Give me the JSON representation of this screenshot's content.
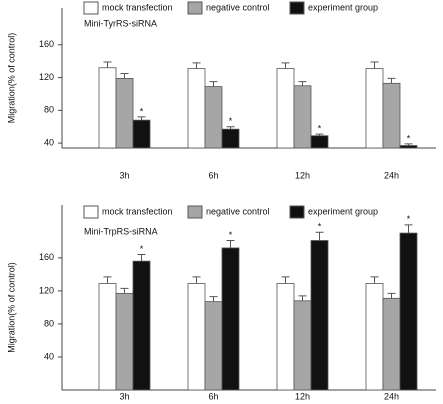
{
  "chart_data": [
    {
      "type": "bar",
      "y_label": "Migration(% of control)",
      "annotation": "Mini-TyrRS-siRNA",
      "categories": [
        "3h",
        "6h",
        "12h",
        "24h"
      ],
      "series": [
        {
          "name": "mock transfection",
          "color": "#ffffff",
          "values": [
            132,
            131,
            131,
            131
          ],
          "errors": [
            7,
            7,
            7,
            8
          ]
        },
        {
          "name": "negative control",
          "color": "#a6a6a6",
          "values": [
            119,
            109,
            110,
            113
          ],
          "errors": [
            6,
            6,
            5,
            6
          ]
        },
        {
          "name": "experiment group",
          "color": "#111111",
          "values": [
            68,
            57,
            49,
            37
          ],
          "errors": [
            4,
            3,
            2,
            2
          ],
          "significance": [
            "*",
            "*",
            "*",
            "*"
          ]
        }
      ],
      "ylim": [
        34,
        205
      ],
      "yticks": [
        40,
        80,
        120,
        160
      ]
    },
    {
      "type": "bar",
      "y_label": "Migration(% of control)",
      "annotation": "Mini-TrpRS-siRNA",
      "categories": [
        "3h",
        "6h",
        "12h",
        "24h"
      ],
      "series": [
        {
          "name": "mock transfection",
          "color": "#ffffff",
          "values": [
            129,
            129,
            129,
            129
          ],
          "errors": [
            8,
            8,
            8,
            8
          ]
        },
        {
          "name": "negative control",
          "color": "#a6a6a6",
          "values": [
            117,
            107,
            108,
            111
          ],
          "errors": [
            6,
            6,
            6,
            6
          ]
        },
        {
          "name": "experiment group",
          "color": "#111111",
          "values": [
            156,
            172,
            181,
            190
          ],
          "errors": [
            8,
            9,
            10,
            10
          ],
          "significance": [
            "*",
            "*",
            "*",
            "*"
          ]
        }
      ],
      "ylim": [
        0,
        224
      ],
      "yticks": [
        40,
        80,
        120,
        160
      ]
    }
  ]
}
